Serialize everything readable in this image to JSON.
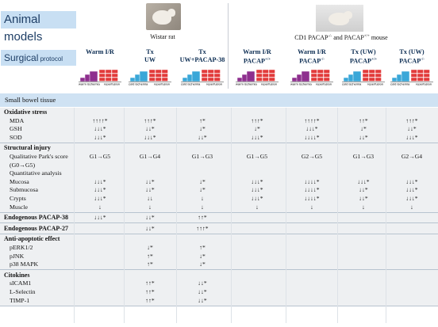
{
  "title": "Animal models",
  "surgical": {
    "main": "Surgical",
    "sub": " protocol"
  },
  "species": [
    {
      "label": "Wistar rat"
    },
    {
      "label_pre": "CD1 PACAP",
      "sup1": "-/-",
      "mid": " and PACAP",
      "sup2": "+/+",
      "post": " mouse"
    }
  ],
  "columns": [
    {
      "line1": "Warm I/R",
      "line2": "",
      "sup": ""
    },
    {
      "line1": "Tx",
      "line2": "UW",
      "sup": ""
    },
    {
      "line1": "Tx",
      "line2": "UW+PACAP-38",
      "sup": ""
    },
    {
      "line1": "Warm I/R",
      "line2": "PACAP",
      "sup": "+/+"
    },
    {
      "line1": "Warm I/R",
      "line2": "PACAP",
      "sup": "-/-"
    },
    {
      "line1": "Tx (UW)",
      "line2": "PACAP",
      "sup": "+/+"
    },
    {
      "line1": "Tx (UW)",
      "line2": "PACAP",
      "sup": "-/-"
    }
  ],
  "protocol_labels": {
    "warm": "warm ischemia",
    "cold": "cold ischemia",
    "rep": "reperfusion"
  },
  "colors": {
    "header_bg": "#c8dff3",
    "band_bg": "#eef0f2",
    "ischemia_red": "#e23b3b",
    "warm_purple": "#8e2f8e",
    "cold_blue": "#3aa7d8"
  },
  "tissue": "Small bowel tissue",
  "sections": [
    {
      "name": "Oxidative stress",
      "rows": [
        {
          "label": "MDA",
          "values": [
            "↑↑↑↑*",
            "↑↑↑*",
            "↑*",
            "↑↑↑*",
            "↑↑↑↑*",
            "↑↑*",
            "↑↑↑*"
          ]
        },
        {
          "label": "GSH",
          "values": [
            "↓↓↓*",
            "↓↓*",
            "↓*",
            "↓*",
            "↓↓↓*",
            "↓*",
            "↓↓*"
          ]
        },
        {
          "label": "SOD",
          "values": [
            "↓↓↓*",
            "↓↓↓*",
            "↓↓*",
            "↓↓↓*",
            "↓↓↓↓*",
            "↓↓*",
            "↓↓↓*"
          ]
        }
      ]
    },
    {
      "name": "Structural injury",
      "rows": [
        {
          "label": "Qualitative Park's score",
          "values": [
            "G1→G5",
            "G1→G4",
            "G1→G3",
            "G1→G5",
            "G2→G5",
            "G1→G3",
            "G2→G4"
          ]
        },
        {
          "label": "(G0→G5)",
          "values": [
            "",
            "",
            "",
            "",
            "",
            "",
            ""
          ]
        },
        {
          "label": "Quantitative analysis",
          "values": [
            "",
            "",
            "",
            "",
            "",
            "",
            ""
          ]
        },
        {
          "label": "Mucosa",
          "values": [
            "↓↓↓*",
            "↓↓*",
            "↓*",
            "↓↓↓*",
            "↓↓↓↓*",
            "↓↓↓*",
            "↓↓↓*"
          ]
        },
        {
          "label": "Submucosa",
          "values": [
            "↓↓↓*",
            "↓↓*",
            "↓*",
            "↓↓↓*",
            "↓↓↓↓*",
            "↓↓*",
            "↓↓↓*"
          ]
        },
        {
          "label": "Crypts",
          "values": [
            "↓↓↓*",
            "↓↓",
            "↓",
            "↓↓↓*",
            "↓↓↓↓*",
            "↓↓*",
            "↓↓↓*"
          ]
        },
        {
          "label": "Muscle",
          "values": [
            "↓",
            "↓",
            "↓",
            "↓",
            "↓",
            "↓",
            "↓"
          ]
        }
      ]
    },
    {
      "name": "Endogenous PACAP-38",
      "inline": true,
      "values": [
        "↓↓↓*",
        "↓↓*",
        "↑↑*",
        "",
        "",
        "",
        ""
      ]
    },
    {
      "name": "Endogenous PACAP-27",
      "inline": true,
      "values": [
        "",
        "↓↓*",
        "↑↑↑*",
        "",
        "",
        "",
        ""
      ]
    },
    {
      "name": "Anti-apoptotic effect",
      "rows": [
        {
          "label": "pERK1/2",
          "values": [
            "",
            "↓*",
            "↑*",
            "",
            "",
            "",
            ""
          ]
        },
        {
          "label": "pJNK",
          "values": [
            "",
            "↑*",
            "↓*",
            "",
            "",
            "",
            ""
          ]
        },
        {
          "label": "p38 MAPK",
          "values": [
            "",
            "↑*",
            "↓*",
            "",
            "",
            "",
            ""
          ]
        }
      ]
    },
    {
      "name": "Citokines",
      "rows": [
        {
          "label": "sICAM1",
          "values": [
            "",
            "↑↑*",
            "↓↓*",
            "",
            "",
            "",
            ""
          ]
        },
        {
          "label": "L-Selectin",
          "values": [
            "",
            "↑↑*",
            "↓↓*",
            "",
            "",
            "",
            ""
          ]
        },
        {
          "label": "TIMP-1",
          "values": [
            "",
            "↑↑*",
            "↓↓*",
            "",
            "",
            "",
            ""
          ]
        }
      ]
    }
  ]
}
